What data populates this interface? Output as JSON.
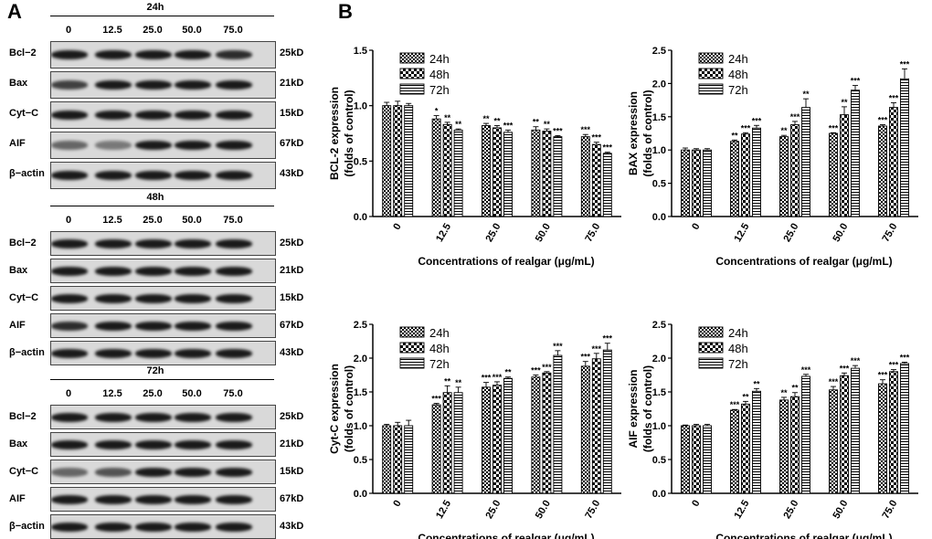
{
  "panel_labels": {
    "a": "A",
    "b": "B"
  },
  "western_blot": {
    "concentrations": [
      "0",
      "12.5",
      "25.0",
      "50.0",
      "75.0"
    ],
    "blocks": [
      {
        "time": "24h",
        "proteins": [
          {
            "name": "Bcl−2",
            "kd": "25kD"
          },
          {
            "name": "Bax",
            "kd": "21kD"
          },
          {
            "name": "Cyt−C",
            "kd": "15kD"
          },
          {
            "name": "AIF",
            "kd": "67kD"
          },
          {
            "name": "β−actin",
            "kd": "43kD"
          }
        ]
      },
      {
        "time": "48h",
        "proteins": [
          {
            "name": "Bcl−2",
            "kd": "25kD"
          },
          {
            "name": "Bax",
            "kd": "21kD"
          },
          {
            "name": "Cyt−C",
            "kd": "15kD"
          },
          {
            "name": "AIF",
            "kd": "67kD"
          },
          {
            "name": "β−actin",
            "kd": "43kD"
          }
        ]
      },
      {
        "time": "72h",
        "proteins": [
          {
            "name": "Bcl−2",
            "kd": "25kD"
          },
          {
            "name": "Bax",
            "kd": "21kD"
          },
          {
            "name": "Cyt−C",
            "kd": "15kD"
          },
          {
            "name": "AIF",
            "kd": "67kD"
          },
          {
            "name": "β−actin",
            "kd": "43kD"
          }
        ]
      }
    ]
  },
  "chart_data": [
    {
      "type": "bar",
      "ylabel": "BCL-2 expression\n(folds of control)",
      "xlabel": "Concentrations of realgar (μg/mL)",
      "categories": [
        "0",
        "12.5",
        "25.0",
        "50.0",
        "75.0"
      ],
      "ylim": [
        0,
        1.5
      ],
      "yticks": [
        "0.0",
        "0.5",
        "1.0",
        "1.5"
      ],
      "legend_position": "top-left",
      "series": [
        {
          "name": "24h",
          "values": [
            1.0,
            0.88,
            0.82,
            0.78,
            0.72
          ],
          "errors": [
            0.03,
            0.03,
            0.02,
            0.03,
            0.02
          ],
          "sig": [
            "",
            "*",
            "**",
            "**",
            "***"
          ]
        },
        {
          "name": "48h",
          "values": [
            1.0,
            0.83,
            0.8,
            0.77,
            0.65
          ],
          "errors": [
            0.04,
            0.02,
            0.02,
            0.02,
            0.02
          ],
          "sig": [
            "",
            "**",
            "**",
            "**",
            "***"
          ]
        },
        {
          "name": "72h",
          "values": [
            1.0,
            0.78,
            0.76,
            0.72,
            0.57
          ],
          "errors": [
            0.02,
            0.01,
            0.02,
            0.01,
            0.01
          ],
          "sig": [
            "",
            "**",
            "***",
            "***",
            "***"
          ]
        }
      ]
    },
    {
      "type": "bar",
      "ylabel": "BAX expression\n(folds of control)",
      "xlabel": "Concentrations of realgar (μg/mL)",
      "categories": [
        "0",
        "12.5",
        "25.0",
        "50.0",
        "75.0"
      ],
      "ylim": [
        0,
        2.5
      ],
      "yticks": [
        "0.0",
        "0.5",
        "1.0",
        "1.5",
        "2.0",
        "2.5"
      ],
      "legend_position": "top-left",
      "series": [
        {
          "name": "24h",
          "values": [
            1.0,
            1.13,
            1.2,
            1.25,
            1.36
          ],
          "errors": [
            0.03,
            0.02,
            0.02,
            0.01,
            0.02
          ],
          "sig": [
            "",
            "**",
            "**",
            "***",
            "***"
          ]
        },
        {
          "name": "48h",
          "values": [
            1.0,
            1.24,
            1.38,
            1.53,
            1.64
          ],
          "errors": [
            0.02,
            0.02,
            0.05,
            0.12,
            0.07
          ],
          "sig": [
            "",
            "***",
            "***",
            "**",
            "***"
          ]
        },
        {
          "name": "72h",
          "values": [
            1.0,
            1.33,
            1.64,
            1.9,
            2.07
          ],
          "errors": [
            0.02,
            0.04,
            0.13,
            0.07,
            0.15
          ],
          "sig": [
            "",
            "***",
            "**",
            "***",
            "***"
          ]
        }
      ]
    },
    {
      "type": "bar",
      "ylabel": "Cyt-C expression\n(folds of control)",
      "xlabel": "Concentrations of realgar (μg/mL)",
      "categories": [
        "0",
        "12.5",
        "25.0",
        "50.0",
        "75.0"
      ],
      "ylim": [
        0,
        2.5
      ],
      "yticks": [
        "0.0",
        "0.5",
        "1.0",
        "1.5",
        "2.0",
        "2.5"
      ],
      "legend_position": "top-left",
      "series": [
        {
          "name": "24h",
          "values": [
            1.0,
            1.31,
            1.57,
            1.72,
            1.88
          ],
          "errors": [
            0.02,
            0.02,
            0.07,
            0.03,
            0.07
          ],
          "sig": [
            "",
            "***",
            "***",
            "***",
            "***"
          ]
        },
        {
          "name": "48h",
          "values": [
            1.0,
            1.49,
            1.6,
            1.78,
            1.99
          ],
          "errors": [
            0.05,
            0.1,
            0.05,
            0.02,
            0.08
          ],
          "sig": [
            "",
            "**",
            "***",
            "***",
            "***"
          ]
        },
        {
          "name": "72h",
          "values": [
            1.0,
            1.49,
            1.7,
            2.04,
            2.12
          ],
          "errors": [
            0.08,
            0.08,
            0.02,
            0.07,
            0.1
          ],
          "sig": [
            "",
            "**",
            "**",
            "***",
            "***"
          ]
        }
      ]
    },
    {
      "type": "bar",
      "ylabel": "AIF expression\n(folds of control)",
      "xlabel": "Concentrations of realgar (μg/mL)",
      "categories": [
        "0",
        "12.5",
        "25.0",
        "50.0",
        "75.0"
      ],
      "ylim": [
        0,
        2.5
      ],
      "yticks": [
        "0.0",
        "0.5",
        "1.0",
        "1.5",
        "2.0",
        "2.5"
      ],
      "legend_position": "top-left",
      "series": [
        {
          "name": "24h",
          "values": [
            1.0,
            1.23,
            1.38,
            1.53,
            1.62
          ],
          "errors": [
            0.01,
            0.01,
            0.04,
            0.05,
            0.06
          ],
          "sig": [
            "",
            "***",
            "**",
            "***",
            "***"
          ]
        },
        {
          "name": "48h",
          "values": [
            1.0,
            1.32,
            1.43,
            1.74,
            1.8
          ],
          "errors": [
            0.02,
            0.04,
            0.06,
            0.04,
            0.03
          ],
          "sig": [
            "",
            "**",
            "**",
            "***",
            "***"
          ]
        },
        {
          "name": "72h",
          "values": [
            1.0,
            1.51,
            1.73,
            1.85,
            1.92
          ],
          "errors": [
            0.02,
            0.04,
            0.03,
            0.04,
            0.02
          ],
          "sig": [
            "",
            "**",
            "***",
            "***",
            "***"
          ]
        }
      ]
    }
  ]
}
